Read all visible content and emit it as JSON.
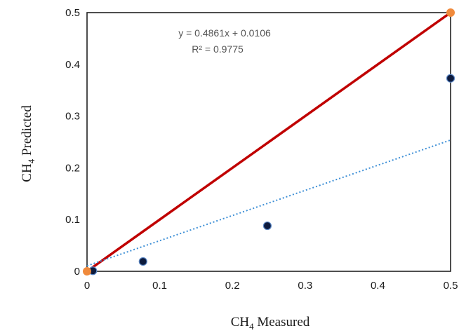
{
  "chart_data": {
    "type": "scatter",
    "xlabel": {
      "main": "CH",
      "sub": "4",
      "rest": " Measured"
    },
    "ylabel": {
      "main": "CH",
      "sub": "4",
      "rest": " Predicted"
    },
    "xlim": [
      0,
      0.5
    ],
    "ylim": [
      0,
      0.5
    ],
    "x_ticks": [
      "0",
      "0.1",
      "0.2",
      "0.3",
      "0.4",
      "0.5"
    ],
    "y_ticks": [
      "0",
      "0.1",
      "0.2",
      "0.3",
      "0.4",
      "0.5"
    ],
    "grid": false,
    "legend": "none",
    "series": [
      {
        "marker": "dark-blue circle",
        "color": "#0d1b3e",
        "points": [
          {
            "x": 0.008,
            "y": 0.001
          },
          {
            "x": 0.077,
            "y": 0.019
          },
          {
            "x": 0.248,
            "y": 0.088
          },
          {
            "x": 0.5,
            "y": 0.373
          }
        ]
      },
      {
        "marker": "orange circle",
        "color": "#f08a3c",
        "points": [
          {
            "x": 0.0,
            "y": 0.0
          },
          {
            "x": 0.5,
            "y": 0.5
          }
        ]
      }
    ],
    "lines": [
      {
        "kind": "one-to-one",
        "style": "solid",
        "color": "#c00000",
        "from": [
          0,
          0
        ],
        "to": [
          0.5,
          0.5
        ]
      },
      {
        "kind": "linear-trendline",
        "style": "dotted",
        "color": "#3d8fd6",
        "slope": 0.4861,
        "intercept": 0.0106
      }
    ],
    "annotations": {
      "equation": "y = 0.4861x + 0.0106",
      "r_squared": "R² = 0.9775"
    }
  }
}
